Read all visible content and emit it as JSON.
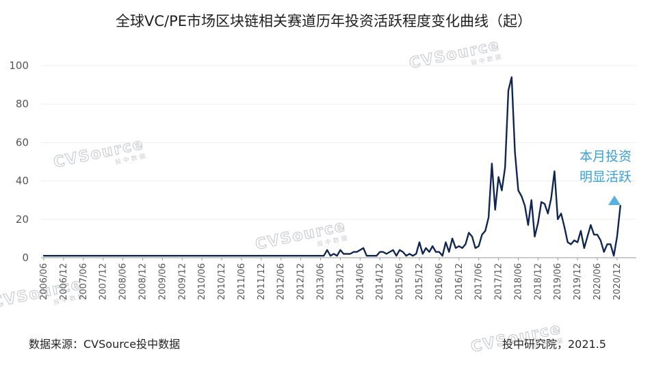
{
  "chart_data": {
    "type": "line",
    "title": "全球VC/PE市场区块链相关赛道历年投资活跃程度变化曲线（起）",
    "xlabel": "",
    "ylabel": "",
    "ylim": [
      0,
      100
    ],
    "yticks": [
      0,
      20,
      40,
      60,
      80,
      100
    ],
    "grid": true,
    "x_tick_labels": [
      "2006/06",
      "2006/12",
      "2007/06",
      "2007/12",
      "2008/06",
      "2008/12",
      "2009/06",
      "2009/12",
      "2010/06",
      "2010/12",
      "2011/06",
      "2011/12",
      "2012/06",
      "2012/12",
      "2013/06",
      "2013/12",
      "2014/06",
      "2014/12",
      "2015/06",
      "2015/12",
      "2016/06",
      "2016/12",
      "2017/06",
      "2017/12",
      "2018/06",
      "2018/12",
      "2019/06",
      "2019/12",
      "2020/06",
      "2020/12"
    ],
    "monthly_from_2013_07": [
      1,
      4,
      1,
      2,
      1,
      4,
      2,
      2,
      2,
      3,
      3,
      4,
      5,
      1,
      1,
      1,
      1,
      3,
      3,
      2,
      3,
      4,
      1,
      4,
      3,
      1,
      2,
      1,
      2,
      8,
      2,
      5,
      3,
      6,
      3,
      3,
      1,
      8,
      3,
      10,
      5,
      6,
      5,
      7,
      13,
      11,
      5,
      6,
      12,
      14,
      21,
      49,
      25,
      42,
      35,
      47,
      87,
      94,
      55,
      35,
      32,
      27,
      17,
      30,
      11,
      18,
      29,
      28,
      23,
      31,
      45,
      20,
      23,
      16,
      8,
      7,
      9,
      8,
      14,
      5,
      11,
      17,
      12,
      12,
      9,
      3,
      7,
      7,
      1,
      11,
      27
    ],
    "baseline_value": 1,
    "annotation": "本月投资明显活跃",
    "source": "数据来源：CVSource投中数据",
    "publisher": "投中研究院，2021.5",
    "watermark": {
      "main": "CVSource",
      "sub": "投中数据"
    },
    "colors": {
      "line": "#0f2552",
      "annotation": "#3aa0d8",
      "marker": "#5ab0e0",
      "grid": "#eeeeee",
      "axis": "#999999"
    }
  }
}
